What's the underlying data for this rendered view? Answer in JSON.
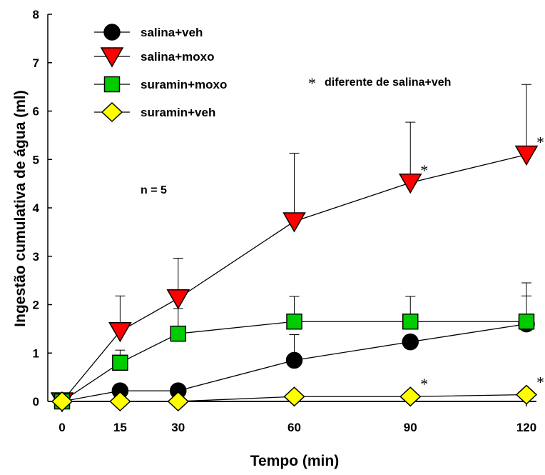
{
  "chart_data": {
    "type": "line",
    "xlabel": "Tempo (min)",
    "ylabel": "Ingestão cumulativa de água (ml)",
    "x": [
      0,
      15,
      30,
      60,
      90,
      120
    ],
    "x_ticks": [
      "0",
      "15",
      "30",
      "60",
      "90",
      "120"
    ],
    "y_ticks": [
      "0",
      "1",
      "2",
      "3",
      "4",
      "5",
      "6",
      "7",
      "8"
    ],
    "xlim": [
      0,
      120
    ],
    "ylim": [
      0,
      8
    ],
    "grid": false,
    "legend_position": "top-left",
    "series": [
      {
        "name": "salina+veh",
        "marker": "circle",
        "color": "#000000",
        "values": [
          0,
          0.22,
          0.22,
          0.85,
          1.23,
          1.6
        ],
        "error_upper": [
          0,
          0,
          0,
          1.38,
          0,
          2.18
        ]
      },
      {
        "name": "salina+moxo",
        "marker": "triangle-down",
        "color": "#ff0000",
        "values": [
          0,
          1.45,
          2.13,
          3.72,
          4.52,
          5.1
        ],
        "error_upper": [
          0,
          2.18,
          2.96,
          5.13,
          5.77,
          6.55
        ]
      },
      {
        "name": "suramin+moxo",
        "marker": "square",
        "color": "#00cc00",
        "values": [
          0,
          0.8,
          1.4,
          1.65,
          1.65,
          1.65
        ],
        "error_upper": [
          0,
          1.06,
          1.92,
          2.17,
          2.17,
          2.45
        ]
      },
      {
        "name": "suramin+veh",
        "marker": "diamond",
        "color": "#ffff00",
        "values": [
          0,
          0,
          0,
          0.1,
          0.1,
          0.14
        ],
        "error_upper": [
          0,
          0,
          0,
          0,
          0,
          0
        ]
      }
    ],
    "annotations": {
      "n_label": "n = 5",
      "significance_note": "diferente de salina+veh",
      "significance_symbol": "*",
      "significant_points": [
        {
          "series": "salina+moxo",
          "x": 90
        },
        {
          "series": "salina+moxo",
          "x": 120
        },
        {
          "series": "suramin+veh",
          "x": 90
        },
        {
          "series": "suramin+veh",
          "x": 120
        }
      ]
    }
  }
}
